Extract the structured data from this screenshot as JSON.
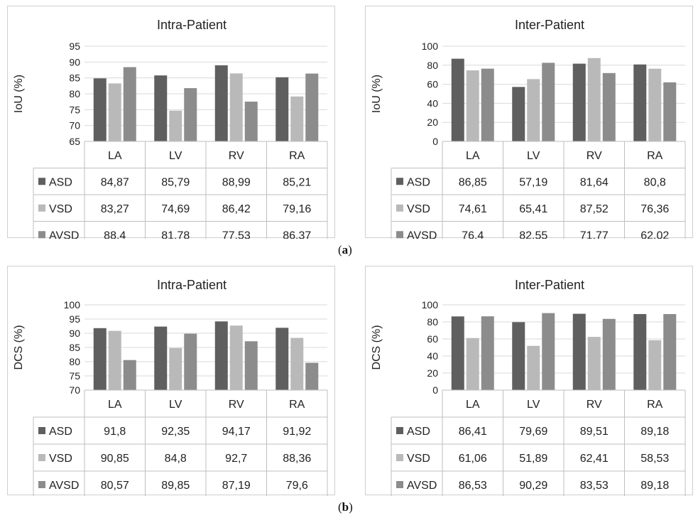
{
  "captions": {
    "a": "a",
    "b": "b"
  },
  "colors": {
    "ASD": "#5f5f5f",
    "VSD": "#b9b9b9",
    "AVSD": "#8c8c8c",
    "grid": "#d9d9d9",
    "table": "#bfbfbf"
  },
  "chart_data": [
    {
      "type": "bar",
      "title": "Intra-Patient",
      "ylabel": "IoU (%)",
      "ylim": [
        65,
        95
      ],
      "yticks": [
        65,
        70,
        75,
        80,
        85,
        90,
        95
      ],
      "categories": [
        "LA",
        "LV",
        "RV",
        "RA"
      ],
      "series": [
        {
          "name": "ASD",
          "values": [
            84.87,
            85.79,
            88.99,
            85.21
          ],
          "labels": [
            "84,87",
            "85,79",
            "88,99",
            "85,21"
          ]
        },
        {
          "name": "VSD",
          "values": [
            83.27,
            74.69,
            86.42,
            79.16
          ],
          "labels": [
            "83,27",
            "74,69",
            "86,42",
            "79,16"
          ]
        },
        {
          "name": "AVSD",
          "values": [
            88.4,
            81.78,
            77.53,
            86.37
          ],
          "labels": [
            "88,4",
            "81,78",
            "77,53",
            "86,37"
          ]
        }
      ],
      "grid": true,
      "legend": "data-table-left"
    },
    {
      "type": "bar",
      "title": "Inter-Patient",
      "ylabel": "IoU (%)",
      "ylim": [
        0,
        100
      ],
      "yticks": [
        0,
        20,
        40,
        60,
        80,
        100
      ],
      "categories": [
        "LA",
        "LV",
        "RV",
        "RA"
      ],
      "series": [
        {
          "name": "ASD",
          "values": [
            86.85,
            57.19,
            81.64,
            80.8
          ],
          "labels": [
            "86,85",
            "57,19",
            "81,64",
            "80,8"
          ]
        },
        {
          "name": "VSD",
          "values": [
            74.61,
            65.41,
            87.52,
            76.36
          ],
          "labels": [
            "74,61",
            "65,41",
            "87,52",
            "76,36"
          ]
        },
        {
          "name": "AVSD",
          "values": [
            76.4,
            82.55,
            71.77,
            62.02
          ],
          "labels": [
            "76,4",
            "82,55",
            "71,77",
            "62,02"
          ]
        }
      ],
      "grid": true,
      "legend": "data-table-left"
    },
    {
      "type": "bar",
      "title": "Intra-Patient",
      "ylabel": "DCS  (%)",
      "ylim": [
        70,
        100
      ],
      "yticks": [
        70,
        75,
        80,
        85,
        90,
        95,
        100
      ],
      "categories": [
        "LA",
        "LV",
        "RV",
        "RA"
      ],
      "series": [
        {
          "name": "ASD",
          "values": [
            91.8,
            92.35,
            94.17,
            91.92
          ],
          "labels": [
            "91,8",
            "92,35",
            "94,17",
            "91,92"
          ]
        },
        {
          "name": "VSD",
          "values": [
            90.85,
            84.8,
            92.7,
            88.36
          ],
          "labels": [
            "90,85",
            "84,8",
            "92,7",
            "88,36"
          ]
        },
        {
          "name": "AVSD",
          "values": [
            80.57,
            89.85,
            87.19,
            79.6
          ],
          "labels": [
            "80,57",
            "89,85",
            "87,19",
            "79,6"
          ]
        }
      ],
      "grid": true,
      "legend": "data-table-left"
    },
    {
      "type": "bar",
      "title": "Inter-Patient",
      "ylabel": "DCS (%)",
      "ylim": [
        0,
        100
      ],
      "yticks": [
        0,
        20,
        40,
        60,
        80,
        100
      ],
      "categories": [
        "LA",
        "LV",
        "RV",
        "RA"
      ],
      "series": [
        {
          "name": "ASD",
          "values": [
            86.41,
            79.69,
            89.51,
            89.18
          ],
          "labels": [
            "86,41",
            "79,69",
            "89,51",
            "89,18"
          ]
        },
        {
          "name": "VSD",
          "values": [
            61.06,
            51.89,
            62.41,
            58.53
          ],
          "labels": [
            "61,06",
            "51,89",
            "62,41",
            "58,53"
          ]
        },
        {
          "name": "AVSD",
          "values": [
            86.53,
            90.29,
            83.53,
            89.18
          ],
          "labels": [
            "86,53",
            "90,29",
            "83,53",
            "89,18"
          ]
        }
      ],
      "grid": true,
      "legend": "data-table-left"
    }
  ]
}
